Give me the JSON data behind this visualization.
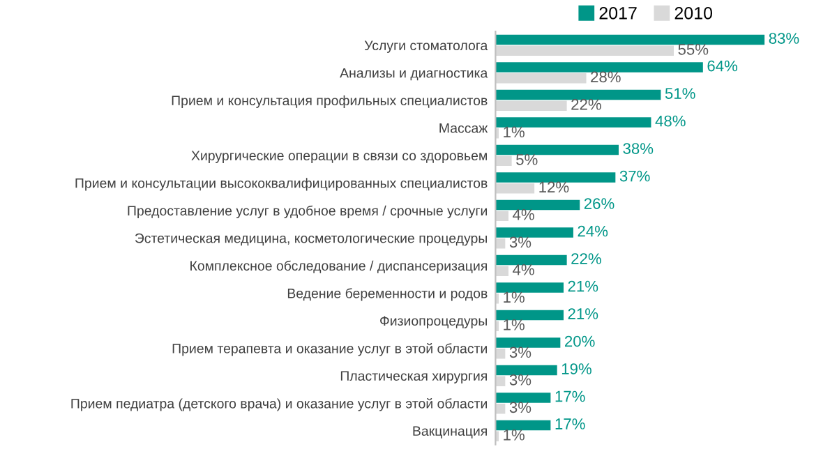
{
  "chart_data": {
    "type": "bar",
    "orientation": "horizontal",
    "legend": "top",
    "grid": false,
    "categories": [
      "Услуги стоматолога",
      "Анализы и диагностика",
      "Прием и консультация профильных специалистов",
      "Массаж",
      "Хирургические операции в связи со здоровьем",
      "Прием и консультации высококвалифицированных специалистов",
      "Предоставление услуг в удобное время / срочные услуги",
      "Эстетическая медицина, косметологические процедуры",
      "Комплексное обследование / диспансеризация",
      "Ведение беременности и родов",
      "Физиопроцедуры",
      "Прием терапевта и оказание услуг в этой области",
      "Пластическая хирургия",
      "Прием педиатра (детского врача) и оказание услуг в этой области",
      "Вакцинация"
    ],
    "series": [
      {
        "name": "2017",
        "color": "#009688",
        "values": [
          83,
          64,
          51,
          48,
          38,
          37,
          26,
          24,
          22,
          21,
          21,
          20,
          19,
          17,
          17
        ],
        "value_labels": [
          "83%",
          "64%",
          "51%",
          "48%",
          "38%",
          "37%",
          "26%",
          "24%",
          "22%",
          "21%",
          "21%",
          "20%",
          "19%",
          "17%",
          "17%"
        ]
      },
      {
        "name": "2010",
        "color": "#d9d9d9",
        "values": [
          55,
          28,
          22,
          1,
          5,
          12,
          4,
          3,
          4,
          1,
          1,
          3,
          3,
          3,
          1
        ],
        "value_labels": [
          "55%",
          "28%",
          "22%",
          "1%",
          "5%",
          "12%",
          "4%",
          "3%",
          "4%",
          "1%",
          "1%",
          "3%",
          "3%",
          "3%",
          "1%"
        ]
      }
    ]
  }
}
